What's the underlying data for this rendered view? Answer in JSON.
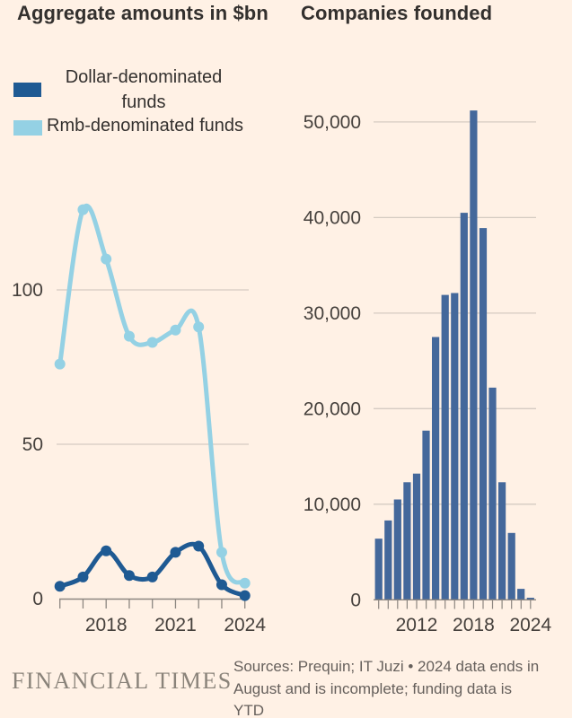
{
  "titles": {
    "left": "Aggregate amounts in $bn",
    "right": "Companies founded"
  },
  "legend": {
    "items": [
      {
        "label": "Dollar-denominated funds",
        "color": "#1F5A93"
      },
      {
        "label": "Rmb-denominated funds",
        "color": "#94D1E4"
      }
    ]
  },
  "footer": {
    "brand": "FINANCIAL TIMES",
    "sources_lines": [
      "Sources: Prequin; IT Juzi • 2024 data ends in",
      "August and is incomplete; funding data is",
      "YTD"
    ]
  },
  "theme": {
    "background": "#FFF1E5",
    "title_color": "#33302E",
    "axis_label_color": "#45403C",
    "grid_color": "#D5CBC2",
    "axis_color": "#8C8680",
    "bar_color": "#44689B",
    "dollar_color": "#1F5A93",
    "rmb_color": "#94D1E4"
  },
  "chart_data": [
    {
      "type": "line",
      "title": "Aggregate amounts in $bn",
      "x": [
        2016,
        2017,
        2018,
        2019,
        2020,
        2021,
        2022,
        2023,
        2024
      ],
      "x_tick_labels": [
        "2018",
        "2021",
        "2024"
      ],
      "ylim": [
        0,
        130
      ],
      "grid": true,
      "legend_position": "top-left",
      "y_ticks": [
        {
          "value": 0,
          "label": "0"
        },
        {
          "value": 50,
          "label": "50"
        },
        {
          "value": 100,
          "label": "100"
        }
      ],
      "series": [
        {
          "name": "Dollar-denominated funds",
          "color": "#1F5A93",
          "values": [
            4,
            7,
            15.5,
            7.5,
            7,
            15,
            17,
            4.5,
            1
          ]
        },
        {
          "name": "Rmb-denominated funds",
          "color": "#94D1E4",
          "values": [
            76,
            126,
            110,
            85,
            83,
            87,
            88,
            15,
            5
          ]
        }
      ]
    },
    {
      "type": "bar",
      "title": "Companies founded",
      "categories": [
        2008,
        2009,
        2010,
        2011,
        2012,
        2013,
        2014,
        2015,
        2016,
        2017,
        2018,
        2019,
        2020,
        2021,
        2022,
        2023,
        2024
      ],
      "x_tick_labels": [
        "2012",
        "2018",
        "2024"
      ],
      "ylim": [
        0,
        52000
      ],
      "grid": true,
      "bar_color": "#44689B",
      "y_ticks": [
        {
          "value": 0,
          "label": "0"
        },
        {
          "value": 10000,
          "label": "10,000"
        },
        {
          "value": 20000,
          "label": "20,000"
        },
        {
          "value": 30000,
          "label": "30,000"
        },
        {
          "value": 40000,
          "label": "40,000"
        },
        {
          "value": 50000,
          "label": "50,000"
        }
      ],
      "values": [
        6400,
        8300,
        10500,
        12300,
        13200,
        17700,
        27500,
        31900,
        32100,
        40500,
        51200,
        38900,
        22200,
        12300,
        7000,
        1150,
        220
      ]
    }
  ]
}
